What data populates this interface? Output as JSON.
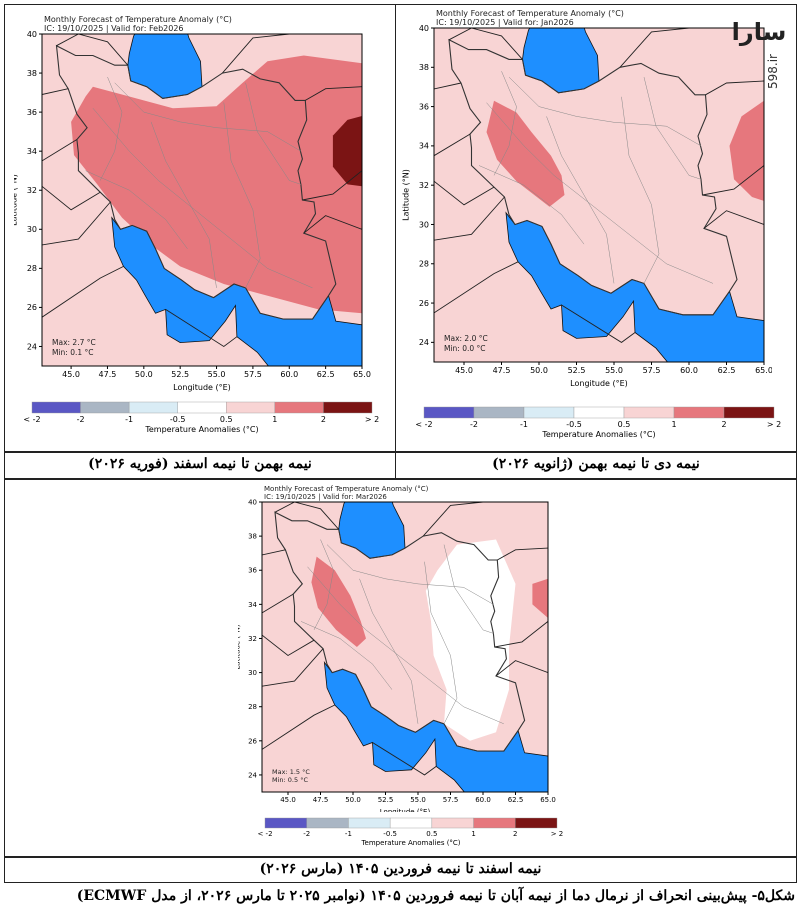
{
  "watermark": {
    "logo_text": "ﺳﺎﺭﺍ",
    "site": "598.ir"
  },
  "legend_scale": {
    "labels": [
      "< -2",
      "-2",
      "-1",
      "-0.5",
      "0.5",
      "1",
      "2",
      "> 2"
    ],
    "bins": [
      "#5a57c4",
      "#aab6c4",
      "#d9ecf5",
      "#ffffff",
      "#f8d4d4",
      "#e6777d",
      "#7b1414"
    ],
    "title": "Temperature Anomalies (°C)"
  },
  "chart_data": [
    {
      "type": "heatmap",
      "title": "Monthly Forecast of Temperature Anomaly (°C)",
      "ic_label": "IC: 19/10/2025 | Valid for: Feb2026",
      "xlabel": "Longitude (°E)",
      "ylabel": "Latitude (°N)",
      "xlim": [
        43.0,
        65.0
      ],
      "ylim": [
        23.0,
        40.0
      ],
      "xticks": [
        "45.0",
        "47.5",
        "50.0",
        "52.5",
        "55.0",
        "57.5",
        "60.0",
        "62.5",
        "65.0"
      ],
      "yticks": [
        "24",
        "26",
        "28",
        "30",
        "32",
        "34",
        "36",
        "38",
        "40"
      ],
      "max_label": "Max: 2.7 °C",
      "min_label": "Min: 0.1 °C",
      "max": 2.7,
      "min": 0.1,
      "caption": "نیمه بهمن تا نیمه اسفند (فوریه ۲۰۲۶)"
    },
    {
      "type": "heatmap",
      "title": "Monthly Forecast of Temperature Anomaly (°C)",
      "ic_label": "IC: 19/10/2025 | Valid for: Jan2026",
      "xlabel": "Longitude (°E)",
      "ylabel": "Latitude (°N)",
      "xlim": [
        43.0,
        65.0
      ],
      "ylim": [
        23.0,
        40.0
      ],
      "xticks": [
        "45.0",
        "47.5",
        "50.0",
        "52.5",
        "55.0",
        "57.5",
        "60.0",
        "62.5",
        "65.0"
      ],
      "yticks": [
        "24",
        "26",
        "28",
        "30",
        "32",
        "34",
        "36",
        "38",
        "40"
      ],
      "max_label": "Max: 2.0 °C",
      "min_label": "Min: 0.0 °C",
      "max": 2.0,
      "min": 0.0,
      "caption": "نیمه دی تا نیمه بهمن (ژانویه ۲۰۲۶)"
    },
    {
      "type": "heatmap",
      "title": "Monthly Forecast of Temperature Anomaly (°C)",
      "ic_label": "IC: 19/10/2025 | Valid for: Mar2026",
      "xlabel": "Longitude (°E)",
      "ylabel": "Latitude (°N)",
      "xlim": [
        43.0,
        65.0
      ],
      "ylim": [
        23.0,
        40.0
      ],
      "xticks": [
        "45.0",
        "47.5",
        "50.0",
        "52.5",
        "55.0",
        "57.5",
        "60.0",
        "62.5",
        "65.0"
      ],
      "yticks": [
        "24",
        "26",
        "28",
        "30",
        "32",
        "34",
        "36",
        "38",
        "40"
      ],
      "max_label": "Max: 1.5 °C",
      "min_label": "Min: 0.5 °C",
      "max": 1.5,
      "min": 0.5,
      "caption": "نیمه اسفند تا نیمه فروردین ۱۴۰۵ (مارس ۲۰۲۶)"
    }
  ],
  "figure_caption": "شکل۵- پیش‌بینی انحراف از نرمال دما از نیمه آبان تا نیمه فروردین ۱۴۰۵ (نوامبر ۲۰۲۵ تا مارس ۲۰۲۶، از مدل ECMWF)"
}
